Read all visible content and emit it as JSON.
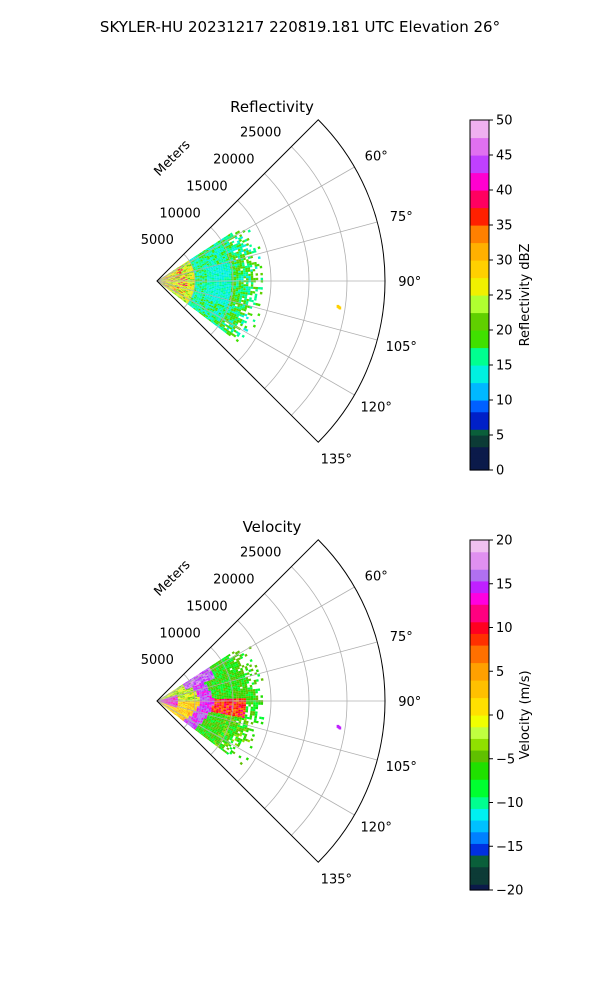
{
  "figure": {
    "suptitle": "SKYLER-HU  20231217  220819.181 UTC Elevation 26°"
  },
  "chart_data": [
    {
      "type": "polar_sector",
      "title": "Reflectivity",
      "radial_axis_label": "Meters",
      "radial_ticks": [
        5000,
        10000,
        15000,
        20000,
        25000
      ],
      "radial_tick_labels": [
        "5000",
        "10000",
        "15000",
        "20000",
        "25000"
      ],
      "rlim": [
        0,
        30000
      ],
      "theta_range_deg": [
        45,
        135
      ],
      "theta_ticks": [
        60,
        75,
        90,
        105,
        120,
        135
      ],
      "theta_tick_labels": [
        "60°",
        "75°",
        "90°",
        "105°",
        "120°",
        "135°"
      ],
      "grid": true,
      "colorbar": {
        "label": "Reflectivity dBZ",
        "range": [
          0,
          50
        ],
        "ticks": [
          0,
          5,
          10,
          15,
          20,
          25,
          30,
          35,
          40,
          45,
          50
        ],
        "tick_labels": [
          "0",
          "5",
          "10",
          "15",
          "20",
          "25",
          "30",
          "35",
          "40",
          "45",
          "50"
        ]
      },
      "field_extent": {
        "theta_deg": [
          57,
          126
        ],
        "range_m": [
          0,
          14000
        ],
        "isolated_echo": {
          "theta_deg": 98,
          "range_m": 24000,
          "value": 28
        }
      }
    },
    {
      "type": "polar_sector",
      "title": "Velocity",
      "radial_axis_label": "Meters",
      "radial_ticks": [
        5000,
        10000,
        15000,
        20000,
        25000
      ],
      "radial_tick_labels": [
        "5000",
        "10000",
        "15000",
        "20000",
        "25000"
      ],
      "rlim": [
        0,
        30000
      ],
      "theta_range_deg": [
        45,
        135
      ],
      "theta_ticks": [
        60,
        75,
        90,
        105,
        120,
        135
      ],
      "theta_tick_labels": [
        "60°",
        "75°",
        "90°",
        "105°",
        "120°",
        "135°"
      ],
      "grid": true,
      "colorbar": {
        "label": "Velocity (m/s)",
        "range": [
          -20,
          20
        ],
        "ticks": [
          -20,
          -15,
          -10,
          -5,
          0,
          5,
          10,
          15,
          20
        ],
        "tick_labels": [
          "−20",
          "−15",
          "−10",
          "−5",
          "0",
          "5",
          "10",
          "15",
          "20"
        ]
      },
      "field_extent": {
        "theta_deg": [
          57,
          126
        ],
        "range_m": [
          0,
          14000
        ],
        "isolated_echo": {
          "theta_deg": 98,
          "range_m": 24000,
          "value": 14
        }
      }
    }
  ]
}
